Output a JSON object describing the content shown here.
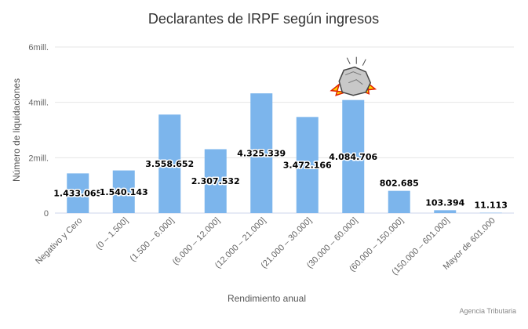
{
  "chart_data": {
    "type": "bar",
    "title": "Declarantes de IRPF según ingresos",
    "xlabel": "Rendimiento anual",
    "ylabel": "Número de liquidaciones",
    "categories": [
      "Negativo y Cero",
      "(0 – 1.500]",
      "(1.500 – 6.000]",
      "(6.000 – 12.000]",
      "(12.000 – 21.000]",
      "(21.000 – 30.000]",
      "(30.000 – 60.000]",
      "(60.000 – 150.000]",
      "(150.000 – 601.000]",
      "Mayor de 601.000"
    ],
    "values": [
      1433065,
      1540143,
      3558652,
      2307532,
      4325339,
      3472166,
      4084706,
      802685,
      103394,
      11113
    ],
    "value_labels": [
      "1.433.065",
      "1.540.143",
      "3.558.652",
      "2.307.532",
      "4.325.339",
      "3.472.166",
      "4.084.706",
      "802.685",
      "103.394",
      "11.113"
    ],
    "ylim": [
      0,
      6000000
    ],
    "y_ticks": [
      0,
      2000000,
      4000000,
      6000000
    ],
    "y_tick_labels": [
      "0",
      "2mill.",
      "4mill.",
      "6mill."
    ],
    "grid": true,
    "bar_color": "#7cb5ec",
    "annotation_icon": "falling-rock-icon",
    "credit": "Agencia Tributaria"
  }
}
